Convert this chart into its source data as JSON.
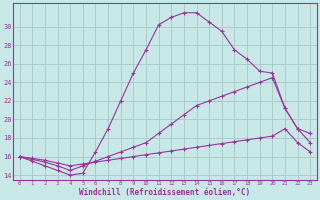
{
  "xlabel": "Windchill (Refroidissement éolien,°C)",
  "bg_color": "#c8e8e8",
  "grid_color": "#aacccc",
  "line_color": "#993399",
  "xlim": [
    -0.5,
    23.5
  ],
  "ylim": [
    13.5,
    32.5
  ],
  "yticks": [
    14,
    16,
    18,
    20,
    22,
    24,
    26,
    28,
    30
  ],
  "xticks": [
    0,
    1,
    2,
    3,
    4,
    5,
    6,
    7,
    8,
    9,
    10,
    11,
    12,
    13,
    14,
    15,
    16,
    17,
    18,
    19,
    20,
    21,
    22,
    23
  ],
  "line1_x": [
    0,
    1,
    2,
    3,
    4,
    5,
    6,
    7,
    8,
    9,
    10,
    11,
    12,
    13,
    14,
    15,
    16,
    17,
    18,
    19,
    20,
    21,
    22,
    23
  ],
  "line1_y": [
    16,
    15.5,
    15,
    14.5,
    14,
    14.2,
    16.5,
    19,
    22,
    25,
    27.5,
    30.2,
    31,
    31.5,
    31.5,
    30.5,
    29.5,
    27.5,
    26.5,
    25.2,
    25,
    21.2,
    19.0,
    17.5
  ],
  "line2_x": [
    0,
    1,
    2,
    3,
    4,
    5,
    6,
    7,
    8,
    9,
    10,
    11,
    12,
    13,
    14,
    15,
    16,
    17,
    18,
    19,
    20,
    21,
    22,
    23
  ],
  "line2_y": [
    16,
    15.7,
    15.4,
    15.0,
    14.5,
    15.0,
    15.5,
    16.0,
    16.5,
    17.0,
    17.5,
    18.5,
    19.5,
    20.5,
    21.5,
    22.0,
    22.5,
    23.0,
    23.5,
    24.0,
    24.5,
    21.2,
    19.0,
    18.5
  ],
  "line3_x": [
    0,
    1,
    2,
    3,
    4,
    5,
    6,
    7,
    8,
    9,
    10,
    11,
    12,
    13,
    14,
    15,
    16,
    17,
    18,
    19,
    20,
    21,
    22,
    23
  ],
  "line3_y": [
    16,
    15.8,
    15.6,
    15.3,
    15.0,
    15.2,
    15.4,
    15.6,
    15.8,
    16.0,
    16.2,
    16.4,
    16.6,
    16.8,
    17.0,
    17.2,
    17.4,
    17.6,
    17.8,
    18.0,
    18.2,
    19.0,
    17.5,
    16.5
  ]
}
